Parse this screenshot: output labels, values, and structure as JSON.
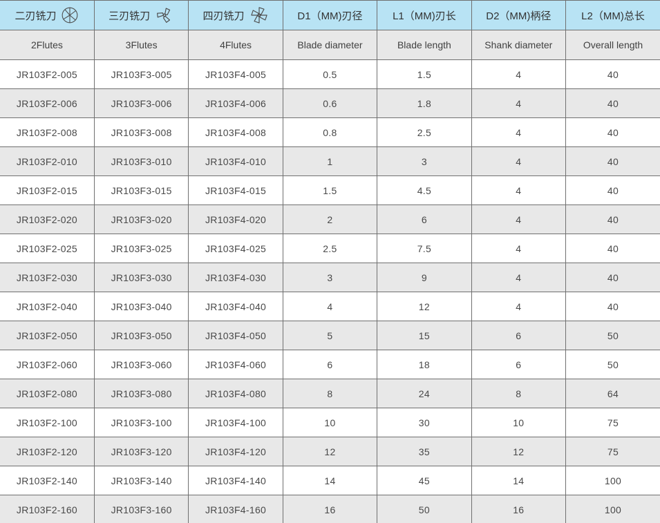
{
  "table": {
    "columns": [
      {
        "title_cn": "二刃铣刀",
        "title_en": "2Flutes",
        "icon": "two-flute-endmill-icon"
      },
      {
        "title_cn": "三刃铣刀",
        "title_en": "3Flutes",
        "icon": "three-flute-endmill-icon"
      },
      {
        "title_cn": "四刃铣刀",
        "title_en": "4Flutes",
        "icon": "four-flute-endmill-icon"
      },
      {
        "title_cn": "D1（MM)刃径",
        "title_en": "Blade diameter"
      },
      {
        "title_cn": "L1（MM)刃长",
        "title_en": "Blade length"
      },
      {
        "title_cn": "D2（MM)柄径",
        "title_en": "Shank diameter"
      },
      {
        "title_cn": "L2（MM)总长",
        "title_en": "Overall length"
      }
    ],
    "rows": [
      [
        "JR103F2-005",
        "JR103F3-005",
        "JR103F4-005",
        "0.5",
        "1.5",
        "4",
        "40"
      ],
      [
        "JR103F2-006",
        "JR103F3-006",
        "JR103F4-006",
        "0.6",
        "1.8",
        "4",
        "40"
      ],
      [
        "JR103F2-008",
        "JR103F3-008",
        "JR103F4-008",
        "0.8",
        "2.5",
        "4",
        "40"
      ],
      [
        "JR103F2-010",
        "JR103F3-010",
        "JR103F4-010",
        "1",
        "3",
        "4",
        "40"
      ],
      [
        "JR103F2-015",
        "JR103F3-015",
        "JR103F4-015",
        "1.5",
        "4.5",
        "4",
        "40"
      ],
      [
        "JR103F2-020",
        "JR103F3-020",
        "JR103F4-020",
        "2",
        "6",
        "4",
        "40"
      ],
      [
        "JR103F2-025",
        "JR103F3-025",
        "JR103F4-025",
        "2.5",
        "7.5",
        "4",
        "40"
      ],
      [
        "JR103F2-030",
        "JR103F3-030",
        "JR103F4-030",
        "3",
        "9",
        "4",
        "40"
      ],
      [
        "JR103F2-040",
        "JR103F3-040",
        "JR103F4-040",
        "4",
        "12",
        "4",
        "40"
      ],
      [
        "JR103F2-050",
        "JR103F3-050",
        "JR103F4-050",
        "5",
        "15",
        "6",
        "50"
      ],
      [
        "JR103F2-060",
        "JR103F3-060",
        "JR103F4-060",
        "6",
        "18",
        "6",
        "50"
      ],
      [
        "JR103F2-080",
        "JR103F3-080",
        "JR103F4-080",
        "8",
        "24",
        "8",
        "64"
      ],
      [
        "JR103F2-100",
        "JR103F3-100",
        "JR103F4-100",
        "10",
        "30",
        "10",
        "75"
      ],
      [
        "JR103F2-120",
        "JR103F3-120",
        "JR103F4-120",
        "12",
        "35",
        "12",
        "75"
      ],
      [
        "JR103F2-140",
        "JR103F3-140",
        "JR103F4-140",
        "14",
        "45",
        "14",
        "100"
      ],
      [
        "JR103F2-160",
        "JR103F3-160",
        "JR103F4-160",
        "16",
        "50",
        "16",
        "100"
      ]
    ],
    "cell_names": [
      "model-2flute-cell",
      "model-3flute-cell",
      "model-4flute-cell",
      "blade-diameter-cell",
      "blade-length-cell",
      "shank-diameter-cell",
      "overall-length-cell"
    ]
  },
  "colors": {
    "header_bg": "#b8e3f4",
    "alt_row_bg": "#e8e8e8",
    "border": "#6f6f6f",
    "text": "#404040"
  }
}
